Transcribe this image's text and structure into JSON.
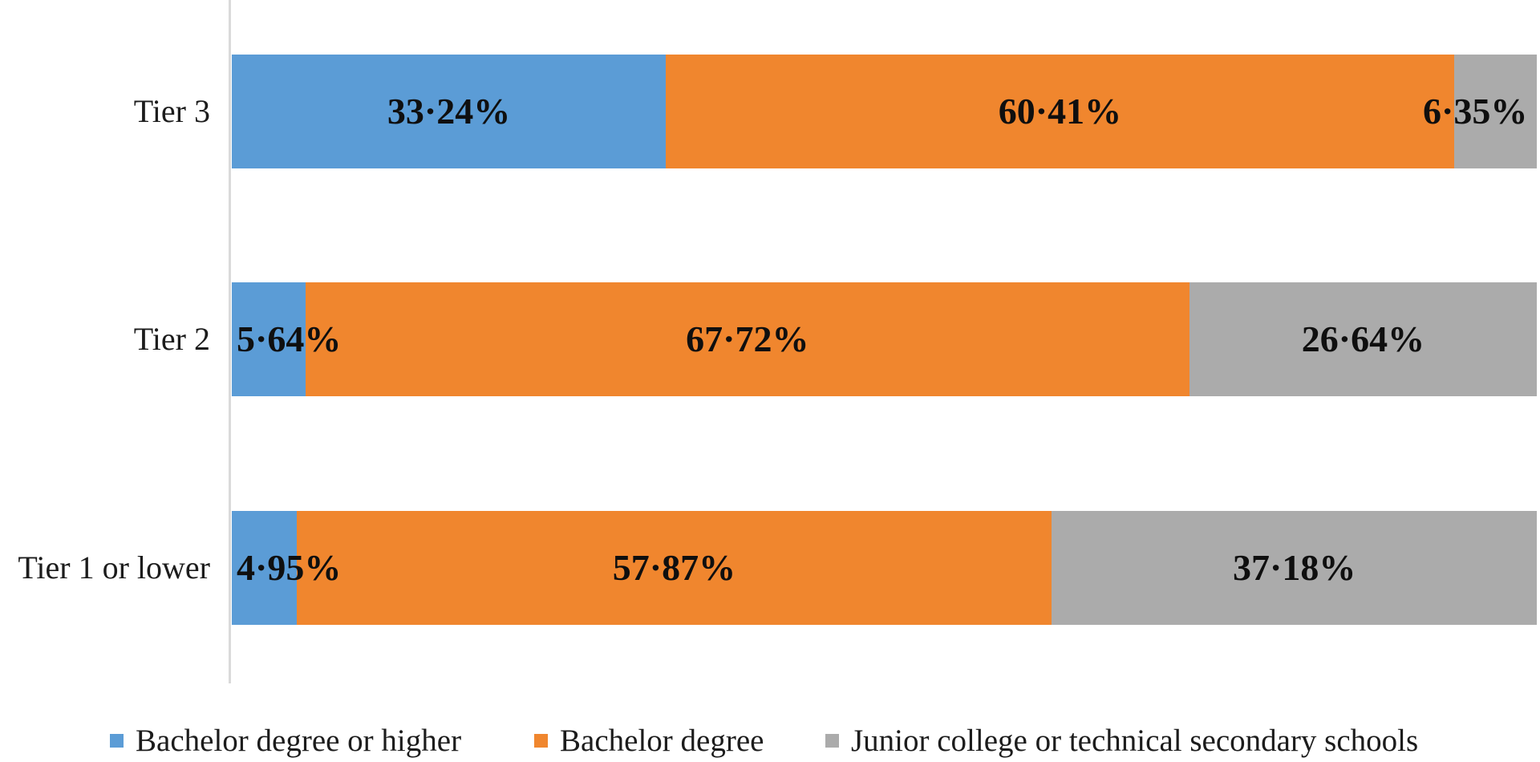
{
  "figure": {
    "background_color": "#FFFFFF",
    "axis_line_color": "#DADADA"
  },
  "chart_data": {
    "type": "bar",
    "orientation": "horizontal",
    "stacked": true,
    "title": "",
    "xlabel": "",
    "ylabel": "",
    "unit": "%",
    "xlim": [
      0,
      100
    ],
    "grid": false,
    "legend_position": "bottom",
    "categories": [
      "Tier 3",
      "Tier 2",
      "Tier 1 or lower"
    ],
    "series": [
      {
        "name": "Bachelor degree or higher",
        "color": "#5B9CD6",
        "values": [
          33.24,
          5.64,
          4.95
        ],
        "data_labels": [
          "33·24%",
          "5·64%",
          "4·95%"
        ]
      },
      {
        "name": "Bachelor degree",
        "color": "#F0862E",
        "values": [
          60.41,
          67.72,
          57.87
        ],
        "data_labels": [
          "60·41%",
          "67·72%",
          "57·87%"
        ]
      },
      {
        "name": "Junior college or technical secondary schools",
        "color": "#ABABAB",
        "values": [
          6.35,
          26.64,
          37.18
        ],
        "data_labels": [
          "6·35%",
          "26·64%",
          "37·18%"
        ]
      }
    ]
  }
}
